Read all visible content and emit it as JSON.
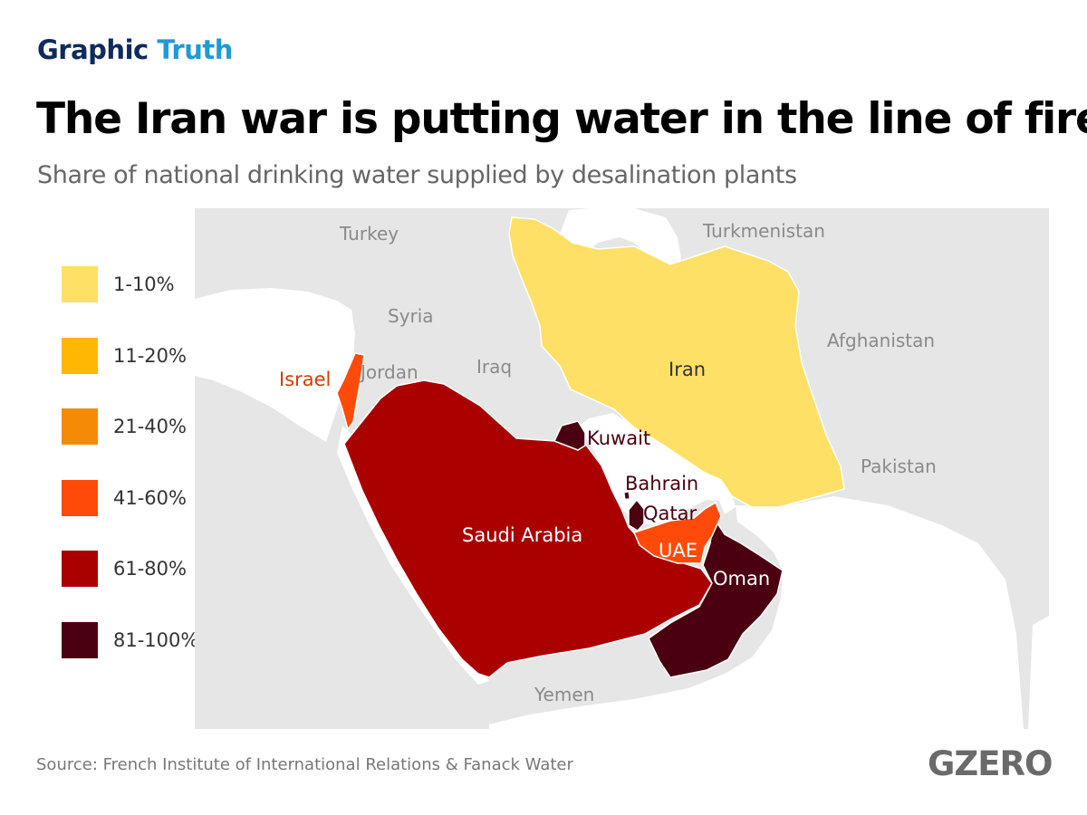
{
  "header": {
    "brand_part1": "Graphic",
    "brand_part2": "Truth"
  },
  "title": "The Iran war is putting water in the line of fire",
  "subtitle": "Share of national drinking water supplied by desalination plants",
  "legend": [
    {
      "label": "1-10%",
      "color": "#ffe066"
    },
    {
      "label": "11-20%",
      "color": "#ffb703"
    },
    {
      "label": "21-40%",
      "color": "#f58a07"
    },
    {
      "label": "41-60%",
      "color": "#ff4a0a"
    },
    {
      "label": "61-80%",
      "color": "#aa0000"
    },
    {
      "label": "81-100%",
      "color": "#4a0010"
    }
  ],
  "map": {
    "background_color": "#eaeaea",
    "land_color": "#e6e6e6",
    "sea_color": "#ffffff",
    "context_labels": [
      "Turkey",
      "Turkmenistan",
      "Syria",
      "Afghanistan",
      "Jordan",
      "Iraq",
      "Pakistan",
      "Yemen"
    ],
    "countries": [
      {
        "name": "Iran",
        "category": "1-10%"
      },
      {
        "name": "Israel",
        "category": "41-60%"
      },
      {
        "name": "UAE",
        "category": "41-60%"
      },
      {
        "name": "Saudi Arabia",
        "category": "61-80%"
      },
      {
        "name": "Kuwait",
        "category": "81-100%"
      },
      {
        "name": "Bahrain",
        "category": "81-100%"
      },
      {
        "name": "Qatar",
        "category": "81-100%"
      },
      {
        "name": "Oman",
        "category": "81-100%"
      }
    ]
  },
  "footer": {
    "source": "Source: French Institute of International Relations & Fanack Water",
    "logo": "GZERO"
  }
}
